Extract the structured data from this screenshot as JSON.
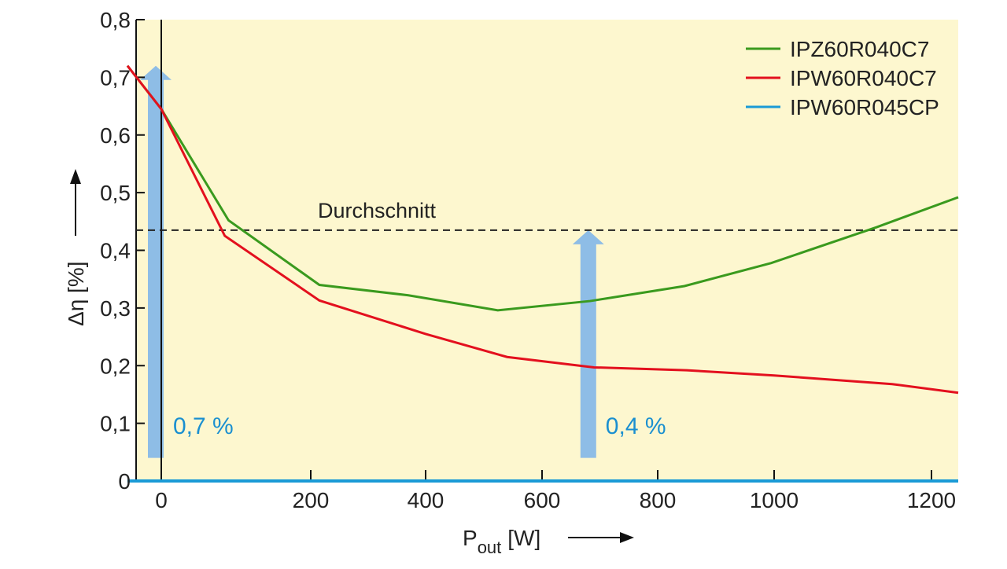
{
  "chart_data": {
    "type": "line",
    "title": "",
    "xlabel": "P",
    "xlabel_sub": "out",
    "xlabel_unit": "[W]",
    "ylabel": "Δη [%]",
    "xlim": [
      -45,
      1246
    ],
    "ylim": [
      0,
      0.8
    ],
    "xticks": [
      0,
      200,
      400,
      600,
      800,
      1000,
      1200
    ],
    "xtick_labels": [
      "0",
      "200",
      "400",
      "600",
      "800",
      "1000",
      "1200"
    ],
    "yticks": [
      0,
      0.1,
      0.2,
      0.3,
      0.4,
      0.5,
      0.6,
      0.7,
      0.8
    ],
    "ytick_labels": [
      "0",
      "0,1",
      "0,2",
      "0,3",
      "0,4",
      "0,5",
      "0,6",
      "0,7",
      "0,8"
    ],
    "legend_position": "top-right",
    "series": [
      {
        "name": "IPZ60R040C7",
        "color": "#3a9a1e",
        "x": [
          -45,
          0,
          90,
          215,
          370,
          524,
          683,
          846,
          995,
          1130,
          1246
        ],
        "y": [
          0.72,
          0.645,
          0.452,
          0.34,
          0.322,
          0.296,
          0.312,
          0.338,
          0.378,
          0.44,
          0.492
        ]
      },
      {
        "name": "IPW60R040C7",
        "color": "#e3101e",
        "x": [
          -45,
          0,
          85,
          215,
          400,
          540,
          690,
          850,
          1000,
          1150,
          1246
        ],
        "y": [
          0.72,
          0.645,
          0.425,
          0.313,
          0.255,
          0.215,
          0.197,
          0.192,
          0.183,
          0.168,
          0.153
        ]
      },
      {
        "name": "IPW60R045CP",
        "color": "#1a9ad6",
        "x": [
          -45,
          1246
        ],
        "y": [
          0,
          0
        ]
      }
    ],
    "reference_line": {
      "label": "Durchschnitt",
      "y": 0.435
    },
    "annotations": [
      {
        "label": "0,7 %",
        "x": 0,
        "y_from": 0.04,
        "y_to": 0.72
      },
      {
        "label": "0,4 %",
        "x": 680,
        "y_from": 0.04,
        "y_to": 0.435
      }
    ]
  }
}
